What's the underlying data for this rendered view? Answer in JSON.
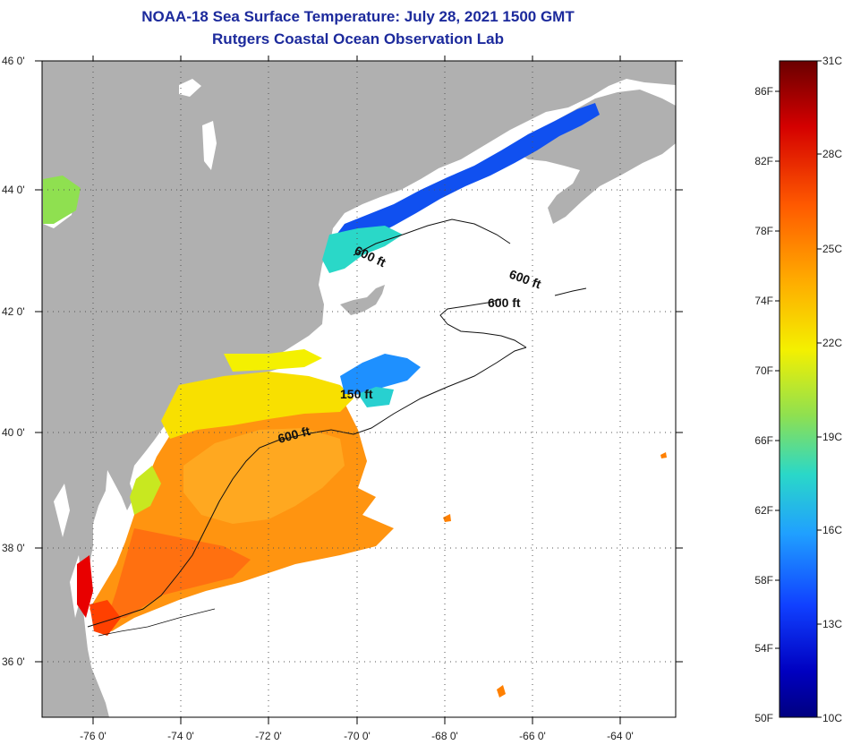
{
  "title": {
    "line1": "NOAA-18 Sea Surface Temperature:  July 28, 2021 1500 GMT",
    "line2": "Rutgers Coastal Ocean Observation Lab"
  },
  "map": {
    "lon_range": [
      -77,
      -63
    ],
    "lat_range": [
      35,
      46
    ],
    "lon_ticks": [
      "-76 0'",
      "-74 0'",
      "-72 0'",
      "-70 0'",
      "-68 0'",
      "-66 0'",
      "-64 0'"
    ],
    "lat_ticks": [
      "46 0'",
      "44 0'",
      "42 0'",
      "40 0'",
      "38 0'",
      "36 0'"
    ],
    "grid": true,
    "land_color": "#b0b0b0",
    "contours": [
      {
        "label": "600 ft"
      },
      {
        "label": "600 ft"
      },
      {
        "label": "600 ft"
      },
      {
        "label": "150 ft"
      },
      {
        "label": "600 ft"
      }
    ]
  },
  "colorbar": {
    "f_labels": [
      "86F",
      "82F",
      "78F",
      "74F",
      "70F",
      "66F",
      "62F",
      "58F",
      "54F",
      "50F"
    ],
    "c_labels": [
      "31C",
      "28C",
      "25C",
      "22C",
      "19C",
      "16C",
      "13C",
      "10C"
    ],
    "colors": [
      "#6a0000",
      "#d40000",
      "#ff5a00",
      "#ffa800",
      "#f4f000",
      "#8fe050",
      "#2ad8c8",
      "#20a0ff",
      "#1040ff",
      "#0000c0",
      "#000080"
    ]
  }
}
